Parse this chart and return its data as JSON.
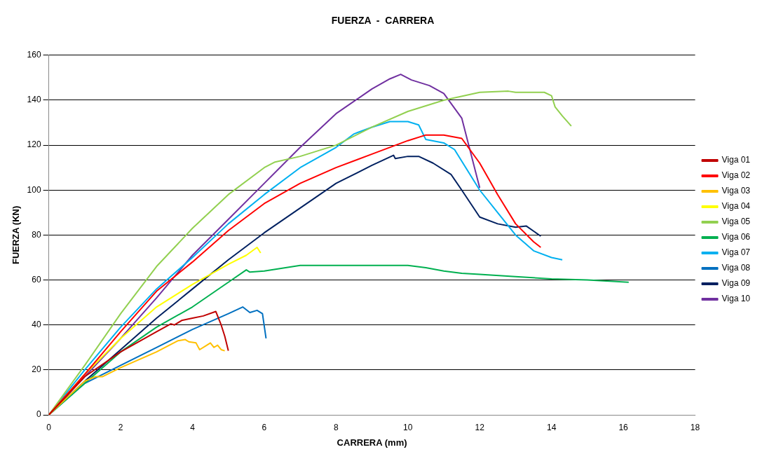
{
  "chart_data": {
    "type": "line",
    "title": "FUERZA  -  CARRERA",
    "xlabel": "CARRERA (mm)",
    "ylabel": "FUERZA (KN)",
    "xlim": [
      0,
      18
    ],
    "xticks": [
      0,
      2,
      4,
      6,
      8,
      10,
      12,
      14,
      16,
      18
    ],
    "ylim": [
      0,
      160
    ],
    "yticks": [
      0,
      20,
      40,
      60,
      80,
      100,
      120,
      140,
      160
    ],
    "grid": "y",
    "legend": "right",
    "series": [
      {
        "name": "Viga 01",
        "color": "#c00000",
        "x": [
          0,
          1,
          2,
          3,
          3.4,
          3.5,
          3.7,
          4.0,
          4.3,
          4.65,
          4.8,
          4.9,
          5.0
        ],
        "values": [
          0,
          17,
          28,
          37,
          40.5,
          40,
          42,
          43,
          44,
          46,
          40,
          35,
          28.5
        ]
      },
      {
        "name": "Viga 02",
        "color": "#ff0000",
        "x": [
          0,
          1,
          2,
          3,
          4,
          5,
          6,
          7,
          8,
          9,
          10,
          10.5,
          11,
          11.5,
          12,
          12.5,
          13,
          13.5,
          13.7
        ],
        "values": [
          0,
          18,
          37,
          55,
          68,
          82,
          94,
          103,
          110,
          116,
          122,
          124.5,
          124.5,
          123,
          112,
          98,
          85,
          77,
          74.5
        ]
      },
      {
        "name": "Viga 03",
        "color": "#ffc000",
        "x": [
          0,
          1,
          1.3,
          1.5,
          2,
          3,
          3.6,
          3.8,
          3.9,
          4.1,
          4.2,
          4.4,
          4.5,
          4.6,
          4.7,
          4.8,
          4.9
        ],
        "values": [
          0,
          15,
          17,
          17,
          21,
          28,
          33,
          33.5,
          32.5,
          32,
          29,
          31,
          32,
          30,
          31,
          29,
          28.5
        ]
      },
      {
        "name": "Viga 04",
        "color": "#ffff00",
        "x": [
          0,
          1,
          2,
          3,
          4,
          5,
          5.5,
          5.8,
          5.9
        ],
        "values": [
          0,
          18,
          34,
          48,
          58,
          67,
          71,
          74.5,
          72
        ]
      },
      {
        "name": "Viga 05",
        "color": "#92d050",
        "x": [
          0,
          1,
          2,
          3,
          4,
          5,
          6,
          6.3,
          7,
          8,
          9,
          10,
          11,
          12,
          12.8,
          13,
          13.8,
          14,
          14.1,
          14.3,
          14.55
        ],
        "values": [
          0,
          22,
          45,
          66,
          83,
          98,
          110,
          112.5,
          115,
          120,
          128,
          135,
          140,
          143.5,
          144,
          143.5,
          143.5,
          142,
          137,
          133,
          128.5
        ]
      },
      {
        "name": "Viga 06",
        "color": "#00b050",
        "x": [
          0,
          1,
          2,
          3,
          4,
          5,
          5.5,
          5.6,
          6,
          7,
          8,
          9,
          10,
          10.5,
          11,
          11.5,
          12,
          13,
          14,
          15,
          16.15
        ],
        "values": [
          0,
          14,
          28,
          39,
          48,
          59,
          64.5,
          63.5,
          64,
          66.5,
          66.5,
          66.5,
          66.5,
          65.5,
          64,
          63,
          62.5,
          61.5,
          60.5,
          60,
          59
        ]
      },
      {
        "name": "Viga 07",
        "color": "#00b0f0",
        "x": [
          0,
          1,
          2,
          3,
          4,
          5,
          6,
          7,
          8,
          8.5,
          9,
          9.5,
          10,
          10.3,
          10.5,
          11,
          11.3,
          12,
          12.5,
          13,
          13.5,
          14,
          14.3
        ],
        "values": [
          0,
          20,
          39,
          56,
          70,
          85,
          98,
          110,
          119,
          125,
          128,
          130.5,
          130.5,
          129,
          122.5,
          121,
          118,
          100,
          90,
          80,
          73,
          70,
          69
        ]
      },
      {
        "name": "Viga 08",
        "color": "#0070c0",
        "x": [
          0,
          1,
          2,
          3,
          4,
          5,
          5.4,
          5.6,
          5.8,
          5.95,
          6.05
        ],
        "values": [
          0,
          14,
          22,
          30,
          38,
          45,
          48,
          45.5,
          46.5,
          45,
          34
        ]
      },
      {
        "name": "Viga 09",
        "color": "#002060",
        "x": [
          0,
          1,
          2,
          3,
          4,
          5,
          6,
          7,
          8,
          9,
          9.6,
          9.65,
          10,
          10.3,
          10.7,
          11.2,
          11.5,
          12,
          12.5,
          13,
          13.3,
          13.7
        ],
        "values": [
          0,
          15,
          29,
          43,
          56,
          69,
          81,
          92,
          103,
          111,
          115.5,
          114,
          115,
          115,
          112,
          107,
          100,
          88,
          85,
          83.5,
          84,
          79.5
        ]
      },
      {
        "name": "Viga 10",
        "color": "#7030a0",
        "x": [
          0,
          1,
          2,
          3,
          4,
          5,
          6,
          7,
          8,
          9,
          9.5,
          9.8,
          10.1,
          10.6,
          11,
          11.5,
          12
        ],
        "values": [
          0,
          17,
          34,
          52,
          71,
          87,
          103,
          119,
          134,
          145,
          149.5,
          151.5,
          149,
          146.5,
          143,
          132,
          101
        ]
      }
    ]
  }
}
